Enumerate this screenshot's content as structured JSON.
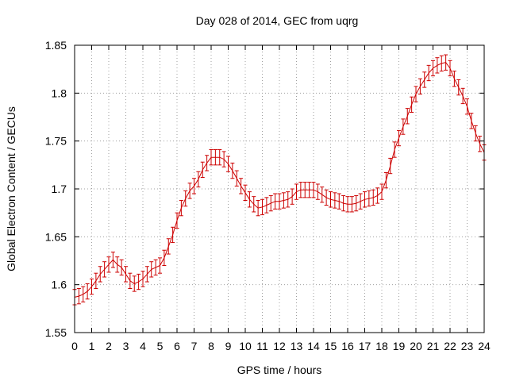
{
  "chart_data": {
    "type": "line",
    "title": "Day 028 of 2014, GEC from uqrg",
    "xlabel": "GPS time / hours",
    "ylabel": "Global Electron Content / GECUs",
    "xlim": [
      0,
      24
    ],
    "ylim": [
      1.55,
      1.85
    ],
    "x_ticks": [
      "0",
      "1",
      "2",
      "3",
      "4",
      "5",
      "6",
      "7",
      "8",
      "9",
      "10",
      "11",
      "12",
      "13",
      "14",
      "15",
      "16",
      "17",
      "18",
      "19",
      "20",
      "21",
      "22",
      "23",
      "24"
    ],
    "y_ticks": [
      "1.55",
      "1.6",
      "1.65",
      "1.7",
      "1.75",
      "1.8",
      "1.85"
    ],
    "grid": true,
    "error_bar": 0.008,
    "series_color": "#cc0000",
    "series": [
      {
        "x": [
          0,
          0.25,
          0.5,
          0.75,
          1,
          1.25,
          1.5,
          1.75,
          2,
          2.25,
          2.5,
          2.75,
          3,
          3.25,
          3.5,
          3.75,
          4,
          4.25,
          4.5,
          4.75,
          5,
          5.25,
          5.5,
          5.75,
          6,
          6.25,
          6.5,
          6.75,
          7,
          7.25,
          7.5,
          7.75,
          8,
          8.25,
          8.5,
          8.75,
          9,
          9.25,
          9.5,
          9.75,
          10,
          10.25,
          10.5,
          10.75,
          11,
          11.25,
          11.5,
          11.75,
          12,
          12.25,
          12.5,
          12.75,
          13,
          13.25,
          13.5,
          13.75,
          14,
          14.25,
          14.5,
          14.75,
          15,
          15.25,
          15.5,
          15.75,
          16,
          16.25,
          16.5,
          16.75,
          17,
          17.25,
          17.5,
          17.75,
          18,
          18.25,
          18.5,
          18.75,
          19,
          19.25,
          19.5,
          19.75,
          20,
          20.25,
          20.5,
          20.75,
          21,
          21.25,
          21.5,
          21.75,
          22,
          22.25,
          22.5,
          22.75,
          23,
          23.25,
          23.5,
          23.75,
          24
        ],
        "values": [
          1.587,
          1.588,
          1.59,
          1.593,
          1.598,
          1.604,
          1.611,
          1.616,
          1.621,
          1.626,
          1.621,
          1.618,
          1.611,
          1.604,
          1.601,
          1.603,
          1.606,
          1.611,
          1.616,
          1.618,
          1.62,
          1.628,
          1.64,
          1.652,
          1.667,
          1.68,
          1.69,
          1.698,
          1.703,
          1.71,
          1.72,
          1.727,
          1.733,
          1.733,
          1.733,
          1.731,
          1.726,
          1.719,
          1.711,
          1.703,
          1.696,
          1.689,
          1.684,
          1.68,
          1.681,
          1.683,
          1.685,
          1.687,
          1.687,
          1.688,
          1.689,
          1.692,
          1.697,
          1.699,
          1.699,
          1.699,
          1.699,
          1.697,
          1.694,
          1.691,
          1.689,
          1.688,
          1.687,
          1.685,
          1.684,
          1.684,
          1.685,
          1.687,
          1.689,
          1.69,
          1.691,
          1.693,
          1.697,
          1.709,
          1.724,
          1.741,
          1.753,
          1.765,
          1.776,
          1.788,
          1.799,
          1.807,
          1.814,
          1.821,
          1.826,
          1.829,
          1.831,
          1.832,
          1.826,
          1.815,
          1.806,
          1.797,
          1.786,
          1.771,
          1.758,
          1.747,
          1.738
        ]
      }
    ]
  }
}
